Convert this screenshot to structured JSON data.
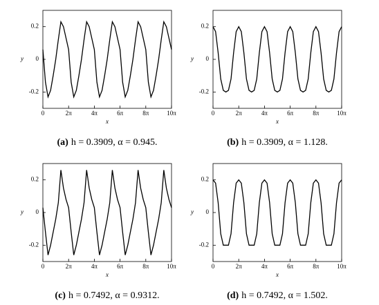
{
  "chart_data": [
    {
      "type": "line",
      "label": "(a)",
      "caption": "h = 0.3909, α = 0.945.",
      "xlabel": "x",
      "ylabel": "y",
      "color": "#000000",
      "x": [
        0,
        0.2,
        0.4,
        0.6,
        0.8,
        1,
        1.2,
        1.4,
        1.6,
        1.8,
        2,
        2.2,
        2.4,
        2.6,
        2.8,
        3,
        3.2,
        3.4,
        3.6,
        3.8,
        4,
        4.2,
        4.4,
        4.6,
        4.8,
        5,
        5.2,
        5.4,
        5.6,
        5.8,
        6,
        6.2,
        6.4,
        6.6,
        6.8,
        7,
        7.2,
        7.4,
        7.6,
        7.8,
        8,
        8.2,
        8.4,
        8.6,
        8.8,
        9,
        9.2,
        9.4,
        9.6,
        9.8,
        10
      ],
      "values": [
        0.06,
        -0.14,
        -0.23,
        -0.19,
        -0.1,
        0.0,
        0.12,
        0.23,
        0.2,
        0.13,
        0.06,
        -0.14,
        -0.23,
        -0.19,
        -0.1,
        0.0,
        0.12,
        0.23,
        0.2,
        0.13,
        0.06,
        -0.14,
        -0.23,
        -0.19,
        -0.1,
        0.0,
        0.12,
        0.23,
        0.2,
        0.13,
        0.06,
        -0.14,
        -0.23,
        -0.19,
        -0.1,
        0.0,
        0.12,
        0.23,
        0.2,
        0.13,
        0.06,
        -0.14,
        -0.23,
        -0.19,
        -0.1,
        0.0,
        0.12,
        0.23,
        0.2,
        0.13,
        0.06
      ],
      "xlim": [
        0,
        10
      ],
      "ylim": [
        -0.3,
        0.3
      ],
      "xticks": [
        0,
        {
          "value": 2,
          "label": "2π"
        },
        {
          "value": 4,
          "label": "4π"
        },
        {
          "value": 6,
          "label": "6π"
        },
        {
          "value": 8,
          "label": "8π"
        },
        {
          "value": 10,
          "label": "10π"
        }
      ],
      "yticks": [
        0.2,
        0,
        -0.2
      ]
    },
    {
      "type": "line",
      "label": "(b)",
      "caption": "h = 0.3909,    α = 1.128.",
      "xlabel": "x",
      "ylabel": "y",
      "color": "#000000",
      "x": [
        0,
        0.2,
        0.4,
        0.6,
        0.8,
        1,
        1.2,
        1.4,
        1.6,
        1.8,
        2,
        2.2,
        2.4,
        2.6,
        2.8,
        3,
        3.2,
        3.4,
        3.6,
        3.8,
        4,
        4.2,
        4.4,
        4.6,
        4.8,
        5,
        5.2,
        5.4,
        5.6,
        5.8,
        6,
        6.2,
        6.4,
        6.6,
        6.8,
        7,
        7.2,
        7.4,
        7.6,
        7.8,
        8,
        8.2,
        8.4,
        8.6,
        8.8,
        9,
        9.2,
        9.4,
        9.6,
        9.8,
        10
      ],
      "values": [
        0.2,
        0.17,
        0.04,
        -0.12,
        -0.19,
        -0.2,
        -0.19,
        -0.12,
        0.04,
        0.17,
        0.2,
        0.17,
        0.04,
        -0.12,
        -0.19,
        -0.2,
        -0.19,
        -0.12,
        0.04,
        0.17,
        0.2,
        0.17,
        0.04,
        -0.12,
        -0.19,
        -0.2,
        -0.19,
        -0.12,
        0.04,
        0.17,
        0.2,
        0.17,
        0.04,
        -0.12,
        -0.19,
        -0.2,
        -0.19,
        -0.12,
        0.04,
        0.17,
        0.2,
        0.17,
        0.04,
        -0.12,
        -0.19,
        -0.2,
        -0.19,
        -0.12,
        0.04,
        0.17,
        0.2
      ],
      "xlim": [
        0,
        10
      ],
      "ylim": [
        -0.3,
        0.3
      ],
      "xticks": [
        0,
        {
          "value": 2,
          "label": "2π"
        },
        {
          "value": 4,
          "label": "4π"
        },
        {
          "value": 6,
          "label": "6π"
        },
        {
          "value": 8,
          "label": "8π"
        },
        {
          "value": 10,
          "label": "10π"
        }
      ],
      "yticks": [
        0.2,
        0,
        -0.2
      ]
    },
    {
      "type": "line",
      "label": "(c)",
      "caption": "h = 0.7492,    α = 0.9312.",
      "xlabel": "x",
      "ylabel": "y",
      "color": "#000000",
      "x": [
        0,
        0.2,
        0.4,
        0.6,
        0.8,
        1,
        1.2,
        1.4,
        1.6,
        1.8,
        2,
        2.2,
        2.4,
        2.6,
        2.8,
        3,
        3.2,
        3.4,
        3.6,
        3.8,
        4,
        4.2,
        4.4,
        4.6,
        4.8,
        5,
        5.2,
        5.4,
        5.6,
        5.8,
        6,
        6.2,
        6.4,
        6.6,
        6.8,
        7,
        7.2,
        7.4,
        7.6,
        7.8,
        8,
        8.2,
        8.4,
        8.6,
        8.8,
        9,
        9.2,
        9.4,
        9.6,
        9.8,
        10
      ],
      "values": [
        0.03,
        -0.12,
        -0.26,
        -0.2,
        -0.12,
        -0.04,
        0.06,
        0.26,
        0.15,
        0.08,
        0.03,
        -0.12,
        -0.26,
        -0.2,
        -0.12,
        -0.04,
        0.06,
        0.26,
        0.15,
        0.08,
        0.03,
        -0.12,
        -0.26,
        -0.2,
        -0.12,
        -0.04,
        0.06,
        0.26,
        0.15,
        0.08,
        0.03,
        -0.12,
        -0.26,
        -0.2,
        -0.12,
        -0.04,
        0.06,
        0.26,
        0.15,
        0.08,
        0.03,
        -0.12,
        -0.26,
        -0.2,
        -0.12,
        -0.04,
        0.06,
        0.26,
        0.15,
        0.08,
        0.03
      ],
      "xlim": [
        0,
        10
      ],
      "ylim": [
        -0.3,
        0.3
      ],
      "xticks": [
        0,
        {
          "value": 2,
          "label": "2π"
        },
        {
          "value": 4,
          "label": "4π"
        },
        {
          "value": 6,
          "label": "6π"
        },
        {
          "value": 8,
          "label": "8π"
        },
        {
          "value": 10,
          "label": "10π"
        }
      ],
      "yticks": [
        0.2,
        0,
        -0.2
      ]
    },
    {
      "type": "line",
      "label": "(d)",
      "caption": "h = 0.7492,    α = 1.502.",
      "xlabel": "x",
      "ylabel": "y",
      "color": "#000000",
      "x": [
        0,
        0.2,
        0.4,
        0.6,
        0.8,
        1,
        1.2,
        1.4,
        1.6,
        1.8,
        2,
        2.2,
        2.4,
        2.6,
        2.8,
        3,
        3.2,
        3.4,
        3.6,
        3.8,
        4,
        4.2,
        4.4,
        4.6,
        4.8,
        5,
        5.2,
        5.4,
        5.6,
        5.8,
        6,
        6.2,
        6.4,
        6.6,
        6.8,
        7,
        7.2,
        7.4,
        7.6,
        7.8,
        8,
        8.2,
        8.4,
        8.6,
        8.8,
        9,
        9.2,
        9.4,
        9.6,
        9.8,
        10
      ],
      "values": [
        0.2,
        0.18,
        0.06,
        -0.13,
        -0.2,
        -0.2,
        -0.2,
        -0.13,
        0.06,
        0.18,
        0.2,
        0.18,
        0.06,
        -0.13,
        -0.2,
        -0.2,
        -0.2,
        -0.13,
        0.06,
        0.18,
        0.2,
        0.18,
        0.06,
        -0.13,
        -0.2,
        -0.2,
        -0.2,
        -0.13,
        0.06,
        0.18,
        0.2,
        0.18,
        0.06,
        -0.13,
        -0.2,
        -0.2,
        -0.2,
        -0.13,
        0.06,
        0.18,
        0.2,
        0.18,
        0.06,
        -0.13,
        -0.2,
        -0.2,
        -0.2,
        -0.13,
        0.06,
        0.18,
        0.2
      ],
      "xlim": [
        0,
        10
      ],
      "ylim": [
        -0.3,
        0.3
      ],
      "xticks": [
        0,
        {
          "value": 2,
          "label": "2π"
        },
        {
          "value": 4,
          "label": "4π"
        },
        {
          "value": 6,
          "label": "6π"
        },
        {
          "value": 8,
          "label": "8π"
        },
        {
          "value": 10,
          "label": "10π"
        }
      ],
      "yticks": [
        0.2,
        0,
        -0.2
      ]
    }
  ]
}
